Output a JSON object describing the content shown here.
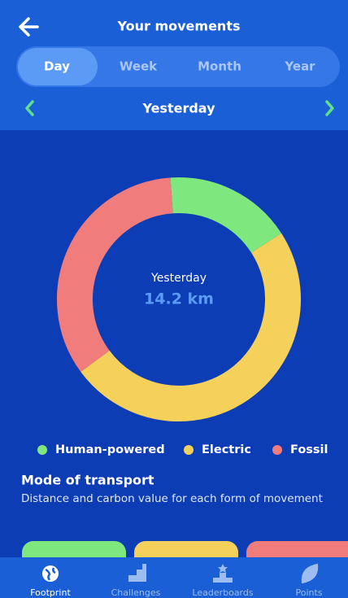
{
  "header": {
    "title": "Your movements"
  },
  "tabs": [
    "Day",
    "Week",
    "Month",
    "Year"
  ],
  "date_nav": {
    "label": "Yesterday"
  },
  "chart_data": {
    "type": "donut",
    "center_label": "Yesterday",
    "center_value": "14.2 km",
    "categories": [
      "Human-powered",
      "Electric",
      "Fossil"
    ],
    "values": [
      17,
      49,
      34
    ],
    "colors": [
      "#7ee87f",
      "#f5d05a",
      "#f07c7c"
    ]
  },
  "section": {
    "title": "Mode of transport",
    "subtitle": "Distance and carbon value for each form of movement"
  },
  "bottom_nav": [
    "Footprint",
    "Challenges",
    "Leaderboards",
    "Points"
  ]
}
